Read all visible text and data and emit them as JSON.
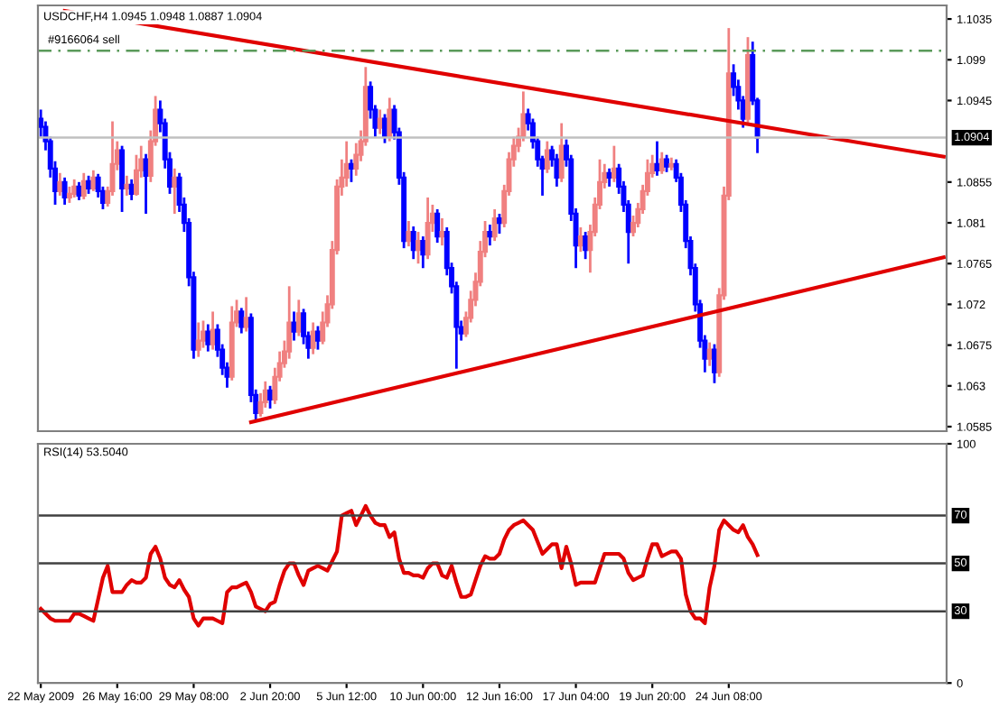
{
  "chart_data": [
    {
      "type": "candlestick",
      "title": "USDCHF,H4 1.0945 1.0948 1.0887 1.0904",
      "tick_labels": "y",
      "categories": [
        null,
        null,
        null,
        null,
        null,
        null,
        null,
        null,
        null,
        null,
        null,
        null,
        null,
        null,
        null,
        null,
        null,
        null,
        null,
        null,
        null,
        null,
        null,
        null,
        null,
        null,
        null,
        null,
        null,
        null,
        null,
        null,
        null,
        null,
        null,
        null,
        null,
        null,
        null,
        null,
        null,
        null,
        null,
        null,
        null,
        null,
        null,
        null,
        null,
        null,
        null,
        null,
        null,
        null,
        null,
        null,
        null,
        null,
        null,
        null,
        null,
        null,
        null,
        null,
        null,
        null,
        null,
        null,
        null,
        null,
        null,
        null,
        null,
        null,
        null,
        null,
        null,
        null,
        null,
        null,
        null,
        null,
        null,
        null,
        null,
        null,
        null,
        null,
        null,
        null,
        null,
        null,
        null,
        null,
        null,
        null,
        null,
        null,
        null,
        null,
        null,
        null,
        null,
        null,
        null,
        null,
        null,
        null,
        null,
        null,
        null,
        null,
        null,
        null,
        null,
        null,
        null,
        null,
        null,
        null,
        null,
        null,
        null,
        null,
        null,
        null,
        null,
        null,
        null,
        null,
        null,
        null,
        null,
        null,
        null,
        null,
        null,
        null,
        null,
        null,
        null,
        null,
        null,
        null,
        null,
        null,
        null,
        null,
        null,
        null,
        null,
        null,
        null,
        null,
        null,
        null,
        null,
        null,
        null,
        null,
        null,
        null,
        null,
        null,
        null,
        null,
        null,
        null,
        null,
        null,
        null,
        null,
        null,
        null,
        null,
        null,
        null,
        null,
        null,
        null,
        null,
        null,
        null,
        null,
        null,
        null,
        null,
        null,
        null,
        null
      ],
      "ohlc": [
        [
          1.0925,
          1.0935,
          1.0905,
          1.0916
        ],
        [
          1.0916,
          1.0922,
          1.089,
          1.09
        ],
        [
          1.09,
          1.0905,
          1.086,
          1.087
        ],
        [
          1.087,
          1.0878,
          1.083,
          1.0845
        ],
        [
          1.0845,
          1.0865,
          1.084,
          1.0855
        ],
        [
          1.0855,
          1.086,
          1.083,
          1.0838
        ],
        [
          1.0838,
          1.085,
          1.0832,
          1.0842
        ],
        [
          1.0842,
          1.0858,
          1.0838,
          1.085
        ],
        [
          1.085,
          1.0855,
          1.0835,
          1.084
        ],
        [
          1.084,
          1.0865,
          1.0836,
          1.0856
        ],
        [
          1.0856,
          1.0862,
          1.0842,
          1.0848
        ],
        [
          1.0848,
          1.0868,
          1.0845,
          1.086
        ],
        [
          1.086,
          1.0864,
          1.0838,
          1.0845
        ],
        [
          1.0845,
          1.085,
          1.0825,
          1.0832
        ],
        [
          1.0832,
          1.085,
          1.0828,
          1.0845
        ],
        [
          1.0845,
          1.0922,
          1.084,
          1.0875
        ],
        [
          1.0875,
          1.09,
          1.0868,
          1.089
        ],
        [
          1.089,
          1.0895,
          1.0822,
          1.0848
        ],
        [
          1.0848,
          1.0862,
          1.084,
          1.0852
        ],
        [
          1.0852,
          1.0858,
          1.0835,
          1.0842
        ],
        [
          1.0842,
          1.0885,
          1.084,
          1.0868
        ],
        [
          1.0868,
          1.0895,
          1.086,
          1.088
        ],
        [
          1.088,
          1.0886,
          1.082,
          1.0862
        ],
        [
          1.0862,
          1.0912,
          1.0855,
          1.09
        ],
        [
          1.09,
          1.095,
          1.0895,
          1.0935
        ],
        [
          1.0935,
          1.0945,
          1.091,
          1.092
        ],
        [
          1.092,
          1.0925,
          1.087,
          1.088
        ],
        [
          1.088,
          1.0888,
          1.0842,
          1.085
        ],
        [
          1.085,
          1.087,
          1.082,
          1.086
        ],
        [
          1.086,
          1.0865,
          1.0822,
          1.083
        ],
        [
          1.083,
          1.0838,
          1.08,
          1.081
        ],
        [
          1.081,
          1.0815,
          1.074,
          1.075
        ],
        [
          1.075,
          1.0756,
          1.066,
          1.067
        ],
        [
          1.067,
          1.07,
          1.0662,
          1.068
        ],
        [
          1.068,
          1.0702,
          1.0672,
          1.069
        ],
        [
          1.069,
          1.0698,
          1.0668,
          1.0676
        ],
        [
          1.0676,
          1.0712,
          1.067,
          1.0692
        ],
        [
          1.0692,
          1.0698,
          1.0662,
          1.067
        ],
        [
          1.067,
          1.0676,
          1.0642,
          1.065
        ],
        [
          1.065,
          1.0656,
          1.0628,
          1.064
        ],
        [
          1.064,
          1.0718,
          1.0636,
          1.07
        ],
        [
          1.07,
          1.0725,
          1.0695,
          1.0712
        ],
        [
          1.0712,
          1.0716,
          1.0688,
          1.0695
        ],
        [
          1.0695,
          1.0728,
          1.069,
          1.0705
        ],
        [
          1.0705,
          1.071,
          1.0612,
          1.062
        ],
        [
          1.062,
          1.0626,
          1.0593,
          1.06
        ],
        [
          1.06,
          1.0622,
          1.0596,
          1.0612
        ],
        [
          1.0612,
          1.0635,
          1.0606,
          1.0625
        ],
        [
          1.0625,
          1.063,
          1.0605,
          1.0615
        ],
        [
          1.0615,
          1.065,
          1.061,
          1.064
        ],
        [
          1.064,
          1.0668,
          1.0635,
          1.0655
        ],
        [
          1.0655,
          1.068,
          1.065,
          1.0668
        ],
        [
          1.0668,
          1.074,
          1.066,
          1.07
        ],
        [
          1.07,
          1.0712,
          1.068,
          1.069
        ],
        [
          1.069,
          1.0725,
          1.0685,
          1.071
        ],
        [
          1.071,
          1.0715,
          1.0676,
          1.0685
        ],
        [
          1.0685,
          1.069,
          1.066,
          1.0672
        ],
        [
          1.0672,
          1.07,
          1.0665,
          1.069
        ],
        [
          1.069,
          1.0696,
          1.067,
          1.068
        ],
        [
          1.068,
          1.0712,
          1.0676,
          1.07
        ],
        [
          1.07,
          1.073,
          1.0695,
          1.072
        ],
        [
          1.072,
          1.079,
          1.0715,
          1.078
        ],
        [
          1.078,
          1.0858,
          1.0775,
          1.085
        ],
        [
          1.085,
          1.088,
          1.084,
          1.086
        ],
        [
          1.086,
          1.09,
          1.085,
          1.0875
        ],
        [
          1.0875,
          1.088,
          1.0855,
          1.087
        ],
        [
          1.087,
          1.0898,
          1.0862,
          1.0885
        ],
        [
          1.0885,
          1.0912,
          1.0878,
          1.09
        ],
        [
          1.09,
          1.0982,
          1.0895,
          1.096
        ],
        [
          1.096,
          1.0966,
          1.0925,
          1.0935
        ],
        [
          1.0935,
          1.094,
          1.0905,
          1.0915
        ],
        [
          1.0915,
          1.0935,
          1.0908,
          1.0925
        ],
        [
          1.0925,
          1.093,
          1.0898,
          1.0905
        ],
        [
          1.0905,
          1.0948,
          1.09,
          1.0935
        ],
        [
          1.0935,
          1.094,
          1.0902,
          1.091
        ],
        [
          1.091,
          1.0915,
          1.0852,
          1.086
        ],
        [
          1.086,
          1.0866,
          1.0782,
          1.079
        ],
        [
          1.079,
          1.0812,
          1.0784,
          1.08
        ],
        [
          1.08,
          1.0806,
          1.077,
          1.078
        ],
        [
          1.078,
          1.08,
          1.0765,
          1.079
        ],
        [
          1.079,
          1.0795,
          1.076,
          1.0775
        ],
        [
          1.0775,
          1.0838,
          1.077,
          1.081
        ],
        [
          1.081,
          1.083,
          1.08,
          1.082
        ],
        [
          1.082,
          1.0825,
          1.0788,
          1.0795
        ],
        [
          1.0795,
          1.0815,
          1.0785,
          1.08
        ],
        [
          1.08,
          1.0805,
          1.0752,
          1.076
        ],
        [
          1.076,
          1.0766,
          1.0732,
          1.074
        ],
        [
          1.074,
          1.0745,
          1.0649,
          1.0695
        ],
        [
          1.0695,
          1.0702,
          1.068,
          1.0688
        ],
        [
          1.0688,
          1.0712,
          1.0684,
          1.0705
        ],
        [
          1.0705,
          1.0735,
          1.07,
          1.0725
        ],
        [
          1.0725,
          1.0755,
          1.0718,
          1.0745
        ],
        [
          1.0745,
          1.079,
          1.074,
          1.0778
        ],
        [
          1.0778,
          1.0812,
          1.0772,
          1.08
        ],
        [
          1.08,
          1.0808,
          1.0785,
          1.0795
        ],
        [
          1.0795,
          1.0825,
          1.079,
          1.0815
        ],
        [
          1.0815,
          1.082,
          1.0798,
          1.081
        ],
        [
          1.081,
          1.0852,
          1.0805,
          1.0845
        ],
        [
          1.0845,
          1.0888,
          1.084,
          1.088
        ],
        [
          1.088,
          1.0905,
          1.0872,
          1.0895
        ],
        [
          1.0895,
          1.0915,
          1.0888,
          1.0905
        ],
        [
          1.0905,
          1.0955,
          1.09,
          1.093
        ],
        [
          1.093,
          1.0936,
          1.0912,
          1.092
        ],
        [
          1.092,
          1.0925,
          1.0892,
          1.09
        ],
        [
          1.09,
          1.0905,
          1.0872,
          1.088
        ],
        [
          1.088,
          1.0884,
          1.084,
          1.087
        ],
        [
          1.087,
          1.09,
          1.0865,
          1.089
        ],
        [
          1.089,
          1.0895,
          1.0872,
          1.088
        ],
        [
          1.088,
          1.0886,
          1.085,
          1.086
        ],
        [
          1.086,
          1.092,
          1.0855,
          1.0895
        ],
        [
          1.0895,
          1.0902,
          1.0872,
          1.088
        ],
        [
          1.088,
          1.0885,
          1.0812,
          1.082
        ],
        [
          1.082,
          1.0826,
          1.076,
          1.0785
        ],
        [
          1.0785,
          1.0805,
          1.0778,
          1.0795
        ],
        [
          1.0795,
          1.08,
          1.077,
          1.078
        ],
        [
          1.078,
          1.0808,
          1.0755,
          1.08
        ],
        [
          1.08,
          1.0838,
          1.0795,
          1.083
        ],
        [
          1.083,
          1.088,
          1.0825,
          1.0855
        ],
        [
          1.0855,
          1.0875,
          1.0848,
          1.0865
        ],
        [
          1.0865,
          1.087,
          1.085,
          1.086
        ],
        [
          1.086,
          1.0895,
          1.0855,
          1.087
        ],
        [
          1.087,
          1.0875,
          1.0842,
          1.085
        ],
        [
          1.085,
          1.0856,
          1.0822,
          1.083
        ],
        [
          1.083,
          1.0835,
          1.0765,
          1.08
        ],
        [
          1.08,
          1.0818,
          1.0795,
          1.081
        ],
        [
          1.081,
          1.0832,
          1.0805,
          1.0825
        ],
        [
          1.0825,
          1.0852,
          1.082,
          1.0845
        ],
        [
          1.0845,
          1.088,
          1.084,
          1.0865
        ],
        [
          1.0865,
          1.0885,
          1.086,
          1.0875
        ],
        [
          1.0875,
          1.09,
          1.0862,
          1.0868
        ],
        [
          1.0868,
          1.0888,
          1.0864,
          1.088
        ],
        [
          1.088,
          1.0885,
          1.0866,
          1.0872
        ],
        [
          1.0872,
          1.0882,
          1.0868,
          1.0875
        ],
        [
          1.0875,
          1.088,
          1.0855,
          1.086
        ],
        [
          1.086,
          1.0865,
          1.0822,
          1.083
        ],
        [
          1.083,
          1.0835,
          1.0782,
          1.079
        ],
        [
          1.079,
          1.0795,
          1.0752,
          1.076
        ],
        [
          1.076,
          1.0765,
          1.0712,
          1.072
        ],
        [
          1.072,
          1.0725,
          1.0672,
          1.068
        ],
        [
          1.068,
          1.0686,
          1.0645,
          1.066
        ],
        [
          1.066,
          1.0678,
          1.0652,
          1.067
        ],
        [
          1.067,
          1.0676,
          1.0633,
          1.0645
        ],
        [
          1.0645,
          1.0738,
          1.064,
          1.073
        ],
        [
          1.073,
          1.085,
          1.0725,
          1.084
        ],
        [
          1.084,
          1.1025,
          1.0835,
          1.0975
        ],
        [
          1.0975,
          1.0985,
          1.095,
          1.096
        ],
        [
          1.096,
          1.0968,
          1.0935,
          1.0945
        ],
        [
          1.0945,
          1.095,
          1.0915,
          1.0925
        ],
        [
          1.0925,
          1.1015,
          1.092,
          1.0995
        ],
        [
          1.0995,
          1.101,
          1.094,
          1.0945
        ],
        [
          1.0945,
          1.0948,
          1.0887,
          1.0904
        ],
        null,
        null,
        null,
        null,
        null,
        null,
        null,
        null,
        null,
        null,
        null,
        null,
        null,
        null,
        null,
        null,
        null,
        null,
        null,
        null,
        null,
        null,
        null,
        null,
        null,
        null,
        null,
        null,
        null,
        null,
        null,
        null,
        null,
        null,
        null,
        null,
        null,
        null,
        null
      ],
      "colors": [
        "#0000ff",
        "#0000ff",
        "#0000ff",
        "#0000ff",
        "#f08080",
        "#0000ff",
        "#f08080",
        "#f08080",
        "#0000ff",
        "#f08080",
        "#0000ff",
        "#f08080",
        "#0000ff",
        "#0000ff",
        "#f08080",
        "#f08080",
        "#f08080",
        "#0000ff",
        "#f08080",
        "#0000ff",
        "#f08080",
        "#f08080",
        "#0000ff",
        "#f08080",
        "#f08080",
        "#0000ff",
        "#0000ff",
        "#0000ff",
        "#f08080",
        "#0000ff",
        "#0000ff",
        "#0000ff",
        "#0000ff",
        "#f08080",
        "#f08080",
        "#0000ff",
        "#f08080",
        "#0000ff",
        "#0000ff",
        "#0000ff",
        "#f08080",
        "#f08080",
        "#0000ff",
        "#f08080",
        "#0000ff",
        "#0000ff",
        "#f08080",
        "#f08080",
        "#0000ff",
        "#f08080",
        "#f08080",
        "#f08080",
        "#f08080",
        "#0000ff",
        "#f08080",
        "#0000ff",
        "#0000ff",
        "#f08080",
        "#0000ff",
        "#f08080",
        "#f08080",
        "#f08080",
        "#f08080",
        "#f08080",
        "#f08080",
        "#0000ff",
        "#f08080",
        "#f08080",
        "#f08080",
        "#0000ff",
        "#0000ff",
        "#f08080",
        "#0000ff",
        "#f08080",
        "#0000ff",
        "#0000ff",
        "#0000ff",
        "#f08080",
        "#0000ff",
        "#f08080",
        "#0000ff",
        "#f08080",
        "#f08080",
        "#0000ff",
        "#f08080",
        "#0000ff",
        "#0000ff",
        "#0000ff",
        "#0000ff",
        "#f08080",
        "#f08080",
        "#f08080",
        "#f08080",
        "#f08080",
        "#0000ff",
        "#f08080",
        "#0000ff",
        "#f08080",
        "#f08080",
        "#f08080",
        "#f08080",
        "#f08080",
        "#0000ff",
        "#0000ff",
        "#0000ff",
        "#0000ff",
        "#f08080",
        "#0000ff",
        "#0000ff",
        "#f08080",
        "#0000ff",
        "#0000ff",
        "#0000ff",
        "#f08080",
        "#0000ff",
        "#f08080",
        "#f08080",
        "#f08080",
        "#f08080",
        "#0000ff",
        "#f08080",
        "#0000ff",
        "#0000ff",
        "#0000ff",
        "#f08080",
        "#f08080",
        "#f08080",
        "#f08080",
        "#f08080",
        "#0000ff",
        "#f08080",
        "#0000ff",
        "#f08080",
        "#0000ff",
        "#0000ff",
        "#0000ff",
        "#0000ff",
        "#0000ff",
        "#0000ff",
        "#0000ff",
        "#f08080",
        "#0000ff",
        "#f08080",
        "#f08080",
        "#f08080",
        "#0000ff",
        "#0000ff",
        "#0000ff",
        "#f08080",
        "#0000ff",
        "#0000ff",
        null,
        null,
        null,
        null,
        null,
        null,
        null,
        null,
        null,
        null,
        null,
        null,
        null,
        null,
        null,
        null,
        null,
        null,
        null,
        null,
        null,
        null,
        null,
        null,
        null,
        null,
        null,
        null,
        null,
        null,
        null,
        null,
        null,
        null,
        null,
        null,
        null,
        null,
        null
      ],
      "series": [
        {
          "type": "line",
          "color": "#e00000",
          "values": [
            null,
            null,
            null,
            null,
            null,
            1.1044,
            null,
            null,
            null,
            null,
            null,
            null,
            null,
            null,
            null,
            null,
            null,
            null,
            null,
            null,
            null,
            null,
            null,
            null,
            null,
            null,
            null,
            null,
            null,
            null,
            null,
            null,
            null,
            null,
            null,
            null,
            null,
            null,
            null,
            null,
            null,
            null,
            null,
            null,
            null,
            null,
            null,
            null,
            null,
            null,
            null,
            null,
            null,
            null,
            null,
            null,
            null,
            null,
            null,
            null,
            null,
            null,
            null,
            null,
            null,
            null,
            null,
            null,
            null,
            null,
            null,
            null,
            null,
            null,
            null,
            null,
            null,
            null,
            null,
            null,
            null,
            null,
            null,
            null,
            null,
            null,
            null,
            null,
            null,
            null,
            null,
            null,
            null,
            null,
            null,
            null,
            null,
            null,
            null,
            null,
            null,
            null,
            null,
            null,
            null,
            null,
            null,
            null,
            null,
            null,
            null,
            null,
            null,
            null,
            null,
            null,
            null,
            null,
            null,
            null,
            null,
            null,
            null,
            null,
            null,
            null,
            null,
            null,
            null,
            null,
            null,
            null,
            null,
            null,
            null,
            null,
            null,
            null,
            null,
            null,
            null,
            null,
            null,
            null,
            null,
            null,
            null,
            null,
            null,
            null,
            null,
            null,
            null,
            null,
            null,
            null,
            null,
            null,
            null,
            null,
            null,
            null,
            null,
            null,
            null,
            null,
            null,
            null,
            null,
            null,
            null,
            null,
            null,
            null,
            null,
            null,
            null,
            null,
            null,
            null,
            null,
            null,
            null,
            null,
            null,
            null,
            null,
            null,
            null,
            1.0883
          ]
        },
        {
          "type": "line",
          "color": "#e00000",
          "values": [
            null,
            null,
            null,
            null,
            null,
            null,
            null,
            null,
            null,
            null,
            null,
            null,
            null,
            null,
            null,
            null,
            null,
            null,
            null,
            null,
            null,
            null,
            null,
            null,
            null,
            null,
            null,
            null,
            null,
            null,
            null,
            null,
            null,
            null,
            null,
            null,
            null,
            null,
            null,
            null,
            null,
            null,
            null,
            null,
            1.059,
            null,
            null,
            null,
            null,
            null,
            null,
            null,
            null,
            null,
            null,
            null,
            null,
            null,
            null,
            null,
            null,
            null,
            null,
            null,
            null,
            null,
            null,
            null,
            null,
            null,
            null,
            null,
            null,
            null,
            null,
            null,
            null,
            null,
            null,
            null,
            null,
            null,
            null,
            null,
            null,
            null,
            null,
            null,
            null,
            null,
            null,
            null,
            null,
            null,
            null,
            null,
            null,
            null,
            null,
            null,
            null,
            null,
            null,
            null,
            null,
            null,
            null,
            null,
            null,
            null,
            null,
            null,
            null,
            null,
            null,
            null,
            null,
            null,
            null,
            null,
            null,
            null,
            null,
            null,
            null,
            null,
            null,
            null,
            null,
            null,
            null,
            null,
            null,
            null,
            null,
            null,
            null,
            null,
            null,
            null,
            null,
            null,
            null,
            null,
            null,
            null,
            null,
            null,
            null,
            null,
            null,
            null,
            null,
            null,
            null,
            null,
            null,
            null,
            null,
            null,
            null,
            null,
            null,
            null,
            null,
            null,
            null,
            null,
            null,
            null,
            null,
            null,
            null,
            null,
            null,
            null,
            null,
            null,
            null,
            null,
            null,
            null,
            null,
            null,
            null,
            null,
            null,
            null,
            null,
            1.0772
          ]
        }
      ],
      "ylim": [
        1.058,
        1.105
      ],
      "yticks": [
        1.1035,
        1.099,
        1.0945,
        1.0855,
        1.081,
        1.0765,
        1.072,
        1.0675,
        1.063,
        1.0585
      ],
      "ref_lines": [
        {
          "axis": "y",
          "value": 1.1,
          "label": "#9166064 sell",
          "color": "#5a9a5a",
          "line_style": "dashed"
        },
        {
          "axis": "y",
          "value": 1.0904,
          "label": "1.0904",
          "color": "#c0c0c0",
          "line_style": "solid"
        }
      ]
    },
    {
      "type": "line",
      "title": "RSI(14) 53.5040",
      "categories": [
        "22 May 2009",
        null,
        null,
        null,
        null,
        null,
        null,
        null,
        null,
        null,
        null,
        null,
        null,
        null,
        null,
        null,
        "26 May 16:00",
        null,
        null,
        null,
        null,
        null,
        null,
        null,
        null,
        null,
        null,
        null,
        null,
        null,
        null,
        null,
        "29 May 08:00",
        null,
        null,
        null,
        null,
        null,
        null,
        null,
        null,
        null,
        null,
        null,
        null,
        null,
        null,
        null,
        "2 Jun 20:00",
        null,
        null,
        null,
        null,
        null,
        null,
        null,
        null,
        null,
        null,
        null,
        null,
        null,
        null,
        null,
        "5 Jun 12:00",
        null,
        null,
        null,
        null,
        null,
        null,
        null,
        null,
        null,
        null,
        null,
        null,
        null,
        null,
        null,
        "10 Jun 00:00",
        null,
        null,
        null,
        null,
        null,
        null,
        null,
        null,
        null,
        null,
        null,
        null,
        null,
        null,
        null,
        "12 Jun 16:00",
        null,
        null,
        null,
        null,
        null,
        null,
        null,
        null,
        null,
        null,
        null,
        null,
        null,
        null,
        null,
        "17 Jun 04:00",
        null,
        null,
        null,
        null,
        null,
        null,
        null,
        null,
        null,
        null,
        null,
        null,
        null,
        null,
        null,
        "19 Jun 20:00",
        null,
        null,
        null,
        null,
        null,
        null,
        null,
        null,
        null,
        null,
        null,
        null,
        null,
        null,
        null,
        "24 Jun 08:00",
        null,
        null,
        null,
        null,
        null,
        null,
        null,
        null,
        null,
        null,
        null,
        null,
        null,
        null,
        null,
        null,
        null,
        null,
        null,
        null,
        null,
        null,
        null,
        null,
        null,
        null,
        null,
        null,
        null,
        null,
        null,
        null,
        null,
        null,
        null,
        null,
        null,
        null,
        null,
        null,
        null,
        null,
        null,
        null,
        null
      ],
      "series": [
        {
          "color": "#e00000",
          "values": [
            31,
            29,
            27,
            26,
            26,
            26,
            26,
            29,
            29,
            28,
            27,
            26,
            35,
            44,
            49,
            38,
            38,
            38,
            41,
            43,
            42,
            42,
            44,
            54,
            57,
            52,
            44,
            41,
            40,
            43,
            39,
            36,
            27,
            24,
            27,
            27,
            27,
            26,
            25,
            38,
            40,
            40,
            41,
            42,
            38,
            32,
            31,
            30,
            33,
            34,
            41,
            47,
            50,
            50,
            45,
            41,
            47,
            48,
            49,
            48,
            47,
            51,
            55,
            70,
            71,
            72,
            66,
            70,
            74,
            70,
            67,
            66,
            66,
            61,
            63,
            52,
            46,
            46,
            45,
            45,
            44,
            48,
            50,
            50,
            45,
            44,
            49,
            42,
            36,
            36,
            37,
            43,
            49,
            53,
            52,
            52,
            54,
            60,
            64,
            66,
            67,
            68,
            66,
            64,
            59,
            54,
            56,
            58,
            58,
            48,
            57,
            50,
            41,
            42,
            42,
            42,
            42,
            48,
            54,
            54,
            54,
            54,
            52,
            46,
            43,
            44,
            45,
            52,
            58,
            58,
            53,
            54,
            55,
            55,
            52,
            37,
            30,
            27,
            27,
            25,
            40,
            49,
            64,
            68,
            66,
            64,
            63,
            66,
            61,
            58,
            53.5,
            null,
            null,
            null,
            null,
            null,
            null,
            null,
            null,
            null,
            null,
            null,
            null,
            null,
            null,
            null,
            null,
            null,
            null,
            null,
            null,
            null,
            null,
            null,
            null,
            null,
            null,
            null,
            null,
            null,
            null,
            null,
            null,
            null,
            null,
            null,
            null,
            null,
            null,
            null
          ]
        }
      ],
      "ylim": [
        0,
        100
      ],
      "yticks": [
        0,
        100
      ],
      "ref_lines": [
        {
          "axis": "y",
          "value": 70,
          "label": "70",
          "color": "#404040",
          "line_style": "solid"
        },
        {
          "axis": "y",
          "value": 50,
          "label": "50",
          "color": "#404040",
          "line_style": "solid"
        },
        {
          "axis": "y",
          "value": 30,
          "label": "30",
          "color": "#404040",
          "line_style": "solid"
        }
      ]
    }
  ]
}
